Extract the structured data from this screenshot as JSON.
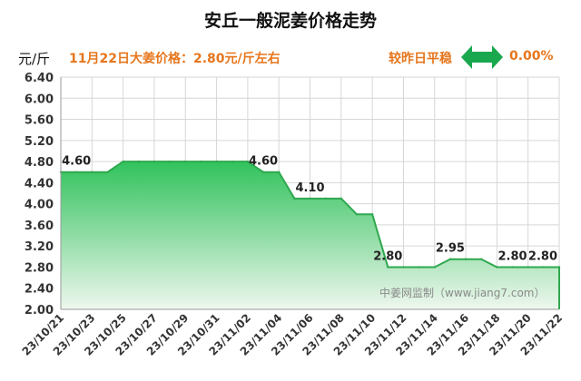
{
  "header": {
    "title": "安丘一般泥姜价格走势",
    "unit": "元/斤",
    "price_text": "11月22日大姜价格：2.80元/斤左右",
    "compare_text": "较昨日平稳",
    "change_pct": "0.00%",
    "arrow_icon": "left-right-arrow-icon"
  },
  "watermark": "中姜网监制（www.jiang7.com）",
  "colors": {
    "accent": "#e6761d",
    "arrow": "#1aa84f",
    "line": "#2fa84f",
    "fill_top": "#31c25c",
    "fill_bottom": "#eef7ee",
    "grid": "#d6d6d6"
  },
  "chart_data": {
    "type": "area",
    "title": "安丘一般泥姜价格走势",
    "ylabel": "元/斤",
    "xlabel": "",
    "ylim": [
      2.0,
      6.4
    ],
    "ystep": 0.4,
    "grid": true,
    "x_ticks": [
      "23/10/21",
      "23/10/23",
      "23/10/25",
      "23/10/27",
      "23/10/29",
      "23/10/31",
      "23/11/02",
      "23/11/04",
      "23/11/06",
      "23/11/08",
      "23/11/10",
      "23/11/12",
      "23/11/14",
      "23/11/16",
      "23/11/18",
      "23/11/20",
      "23/11/22"
    ],
    "x": [
      "23/10/21",
      "23/10/22",
      "23/10/23",
      "23/10/24",
      "23/10/25",
      "23/10/26",
      "23/10/27",
      "23/10/28",
      "23/10/29",
      "23/10/30",
      "23/10/31",
      "23/11/01",
      "23/11/02",
      "23/11/03",
      "23/11/04",
      "23/11/05",
      "23/11/06",
      "23/11/07",
      "23/11/08",
      "23/11/09",
      "23/11/10",
      "23/11/11",
      "23/11/12",
      "23/11/13",
      "23/11/14",
      "23/11/15",
      "23/11/16",
      "23/11/17",
      "23/11/18",
      "23/11/19",
      "23/11/20",
      "23/11/21",
      "23/11/22"
    ],
    "values": [
      4.6,
      4.6,
      4.6,
      4.6,
      4.8,
      4.8,
      4.8,
      4.8,
      4.8,
      4.8,
      4.8,
      4.8,
      4.8,
      4.6,
      4.6,
      4.1,
      4.1,
      4.1,
      4.1,
      3.8,
      3.8,
      2.8,
      2.8,
      2.8,
      2.8,
      2.95,
      2.95,
      2.95,
      2.8,
      2.8,
      2.8,
      2.8,
      2.8
    ],
    "data_labels": [
      {
        "x": "23/10/22",
        "text": "4.60"
      },
      {
        "x": "23/11/03",
        "text": "4.60"
      },
      {
        "x": "23/11/06",
        "text": "4.10"
      },
      {
        "x": "23/11/11",
        "text": "2.80"
      },
      {
        "x": "23/11/15",
        "text": "2.95"
      },
      {
        "x": "23/11/19",
        "text": "2.80"
      },
      {
        "x": "23/11/22",
        "text": "2.80"
      }
    ]
  }
}
